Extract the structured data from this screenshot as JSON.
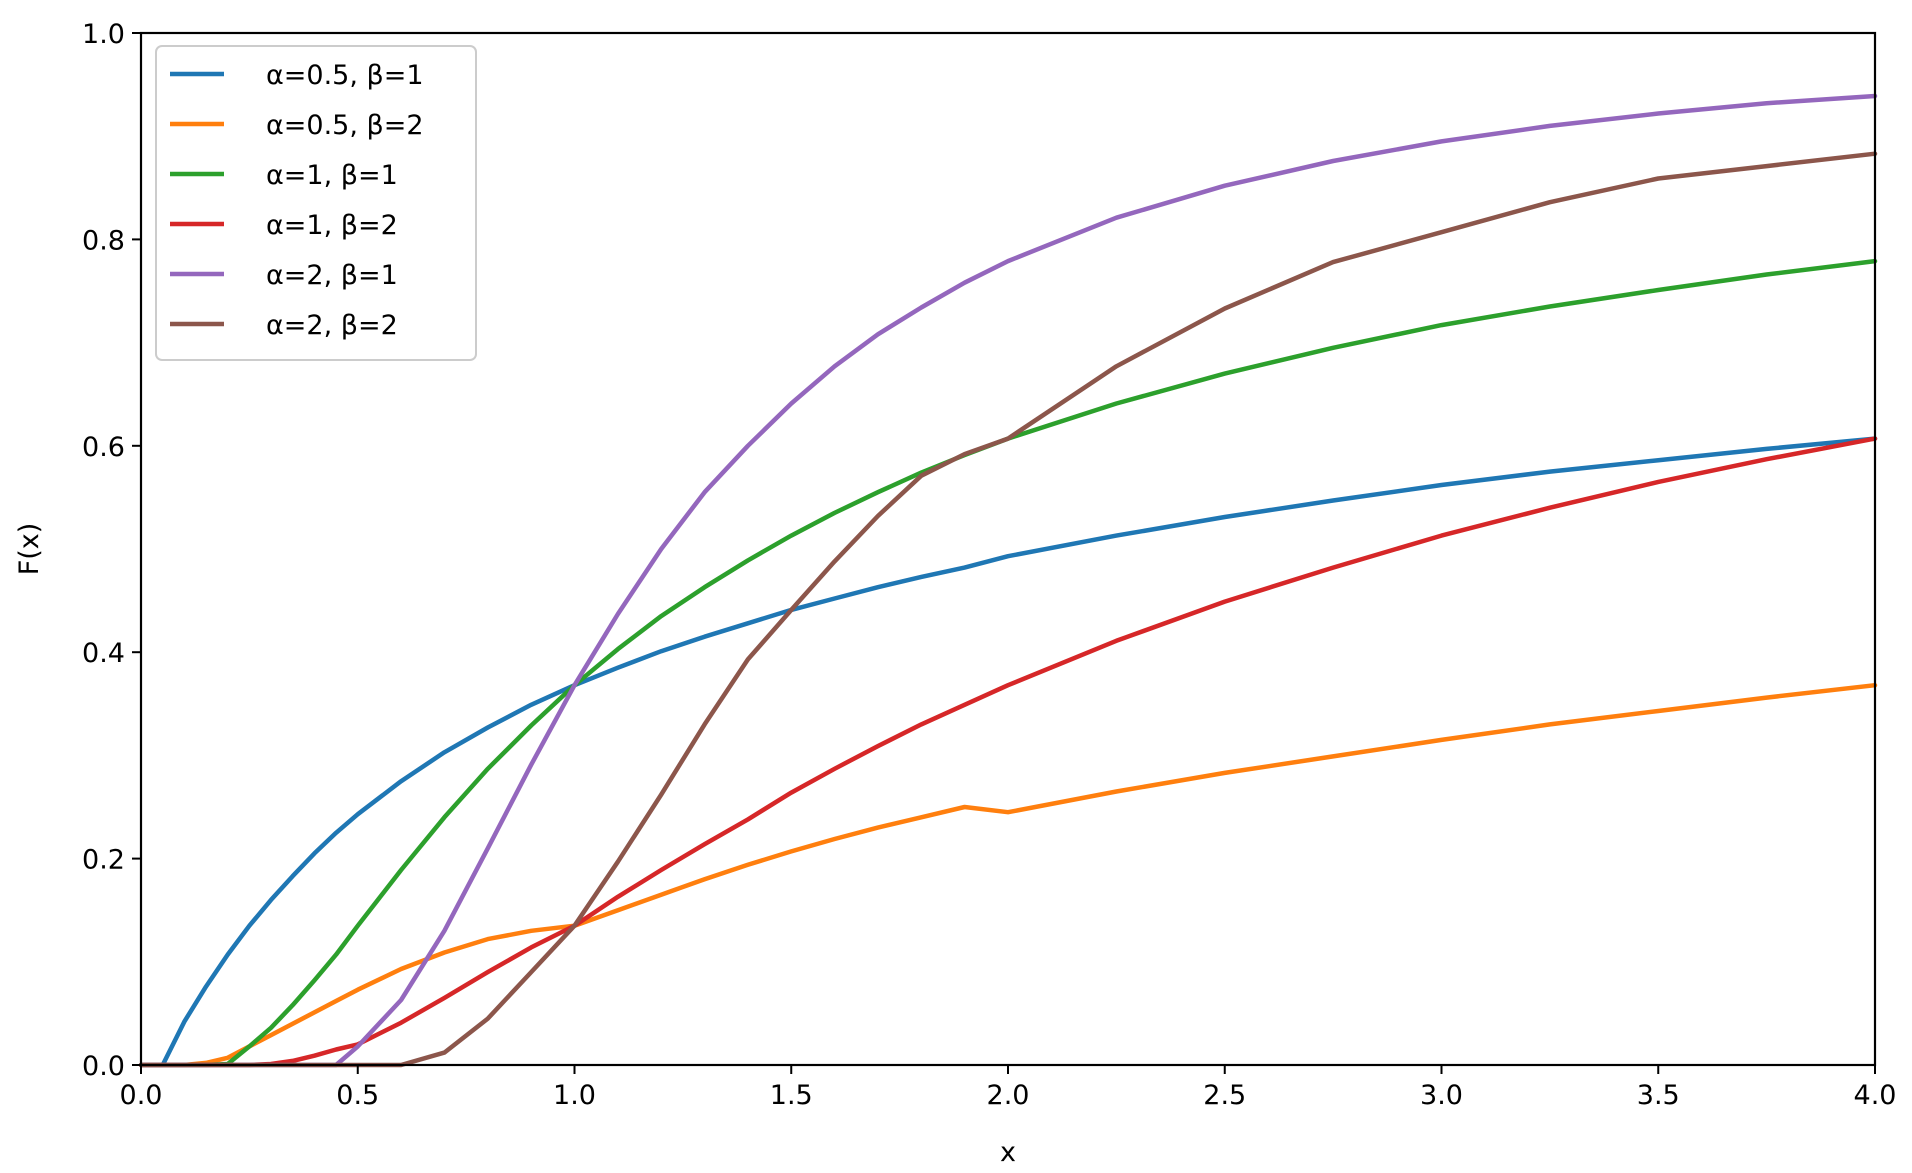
{
  "chart_data": {
    "type": "line",
    "title": "",
    "xlabel": "x",
    "ylabel": "F(x)",
    "xlim": [
      0.0,
      4.0
    ],
    "ylim": [
      0.0,
      1.0
    ],
    "xticks": [
      "0.0",
      "0.5",
      "1.0",
      "1.5",
      "2.0",
      "2.5",
      "3.0",
      "3.5",
      "4.0"
    ],
    "yticks": [
      "0.0",
      "0.2",
      "0.4",
      "0.6",
      "0.8",
      "1.0"
    ],
    "grid": false,
    "legend_position": "top-left",
    "x": [
      0.0,
      0.05,
      0.1,
      0.15,
      0.2,
      0.25,
      0.3,
      0.35,
      0.4,
      0.45,
      0.5,
      0.6,
      0.7,
      0.8,
      0.9,
      1.0,
      1.1,
      1.2,
      1.3,
      1.4,
      1.5,
      1.6,
      1.7,
      1.8,
      1.9,
      2.0,
      2.25,
      2.5,
      2.75,
      3.0,
      3.25,
      3.5,
      3.75,
      4.0
    ],
    "series": [
      {
        "name": "α=0.5, β=1",
        "color": "#1f77b4",
        "values": [
          0.0,
          0.0,
          0.042,
          0.076,
          0.107,
          0.135,
          0.16,
          0.183,
          0.205,
          0.225,
          0.243,
          0.275,
          0.303,
          0.327,
          0.349,
          0.368,
          0.385,
          0.401,
          0.415,
          0.428,
          0.441,
          0.452,
          0.463,
          0.473,
          0.482,
          0.493,
          0.513,
          0.531,
          0.547,
          0.562,
          0.575,
          0.586,
          0.597,
          0.607
        ]
      },
      {
        "name": "α=0.5, β=2",
        "color": "#ff7f0e",
        "values": [
          0.0,
          0.0,
          0.0,
          0.002,
          0.007,
          0.018,
          0.029,
          0.04,
          0.051,
          0.062,
          0.073,
          0.093,
          0.109,
          0.122,
          0.13,
          0.135,
          0.15,
          0.165,
          0.18,
          0.194,
          0.207,
          0.219,
          0.23,
          0.24,
          0.25,
          0.245,
          0.265,
          0.283,
          0.299,
          0.315,
          0.33,
          0.343,
          0.356,
          0.368
        ]
      },
      {
        "name": "α=1, β=1",
        "color": "#2ca02c",
        "values": [
          0.0,
          0.0,
          0.0,
          0.0,
          0.001,
          0.018,
          0.036,
          0.058,
          0.082,
          0.107,
          0.135,
          0.189,
          0.24,
          0.287,
          0.329,
          0.368,
          0.403,
          0.435,
          0.463,
          0.489,
          0.513,
          0.535,
          0.555,
          0.574,
          0.591,
          0.607,
          0.641,
          0.67,
          0.695,
          0.717,
          0.735,
          0.751,
          0.766,
          0.779
        ]
      },
      {
        "name": "α=1, β=2",
        "color": "#d62728",
        "values": [
          0.0,
          0.0,
          0.0,
          0.0,
          0.0,
          0.0,
          0.001,
          0.004,
          0.009,
          0.015,
          0.02,
          0.041,
          0.065,
          0.09,
          0.114,
          0.135,
          0.163,
          0.189,
          0.214,
          0.238,
          0.264,
          0.287,
          0.309,
          0.33,
          0.349,
          0.368,
          0.411,
          0.449,
          0.482,
          0.513,
          0.54,
          0.565,
          0.587,
          0.607
        ]
      },
      {
        "name": "α=2, β=1",
        "color": "#9467bd",
        "values": [
          0.0,
          0.0,
          0.0,
          0.0,
          0.0,
          0.0,
          0.0,
          0.0,
          0.0,
          0.0,
          0.018,
          0.063,
          0.13,
          0.21,
          0.291,
          0.368,
          0.437,
          0.5,
          0.555,
          0.6,
          0.641,
          0.677,
          0.708,
          0.734,
          0.758,
          0.779,
          0.821,
          0.852,
          0.876,
          0.895,
          0.91,
          0.922,
          0.932,
          0.939
        ]
      },
      {
        "name": "α=2, β=2",
        "color": "#8c564b",
        "values": [
          0.0,
          0.0,
          0.0,
          0.0,
          0.0,
          0.0,
          0.0,
          0.0,
          0.0,
          0.0,
          0.0,
          0.0,
          0.012,
          0.045,
          0.09,
          0.135,
          0.197,
          0.262,
          0.33,
          0.393,
          0.441,
          0.488,
          0.532,
          0.571,
          0.592,
          0.607,
          0.677,
          0.733,
          0.778,
          0.807,
          0.836,
          0.859,
          0.871,
          0.883
        ]
      }
    ]
  }
}
